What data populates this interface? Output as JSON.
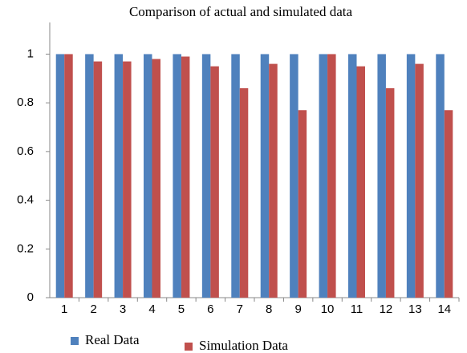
{
  "chart_data": {
    "type": "bar",
    "title": "Comparison of actual and simulated data",
    "categories": [
      "1",
      "2",
      "3",
      "4",
      "5",
      "6",
      "7",
      "8",
      "9",
      "10",
      "11",
      "12",
      "13",
      "14"
    ],
    "series": [
      {
        "name": "Real Data",
        "color": "#4f81bd",
        "values": [
          1,
          1,
          1,
          1,
          1,
          1,
          1,
          1,
          1,
          1,
          1,
          1,
          1,
          1
        ]
      },
      {
        "name": "Simulation Data",
        "color": "#c0504d",
        "values": [
          1,
          0.97,
          0.97,
          0.98,
          0.99,
          0.95,
          0.86,
          0.96,
          0.77,
          1,
          0.95,
          0.86,
          0.96,
          0.77
        ]
      }
    ],
    "ylim": [
      0,
      1.13
    ],
    "yticks": [
      0,
      0.2,
      0.4,
      0.6,
      0.8,
      1
    ],
    "grid": false
  }
}
